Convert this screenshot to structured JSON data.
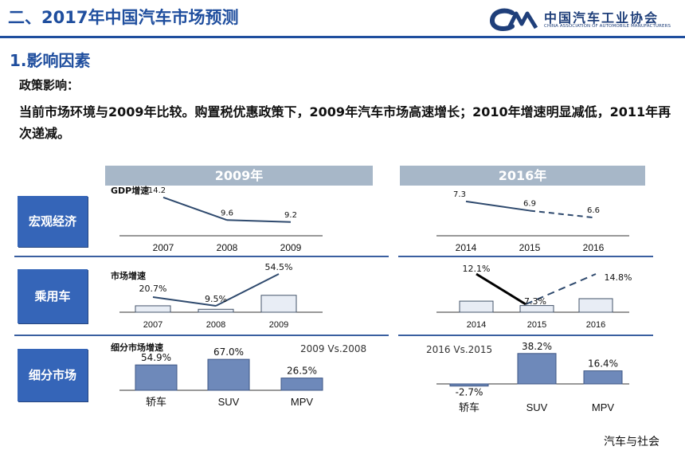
{
  "header": {
    "title": "二、2017年中国汽车市场预测",
    "logo_cn": "中国汽车工业协会",
    "logo_en": "CHINA ASSOCIATION OF AUTOMOBILE MANUFACTURERS"
  },
  "section_title": "1.影响因素",
  "policy_label": "政策影响：",
  "description": "当前市场环境与2009年比较。购置税优惠政策下，2009年汽车市场高速增长；2010年增速明显减低，2011年再次递减。",
  "columns": [
    "2009年",
    "2016年"
  ],
  "rows": [
    "宏观经济",
    "乘用车",
    "细分市场"
  ],
  "footer": "汽车与社会",
  "colors": {
    "brand": "#1f4e9e",
    "label_bg": "#3565b8",
    "header_bg": "#a7b7c8",
    "bar": "#6e89ba",
    "line": "#2f4a6e"
  },
  "chart_data": [
    {
      "type": "line",
      "panel": "gdp-2009",
      "title": "GDP增速",
      "categories": [
        "2007",
        "2008",
        "2009"
      ],
      "values": [
        14.2,
        9.6,
        9.2
      ],
      "labels": [
        "14.2",
        "9.6",
        "9.2"
      ]
    },
    {
      "type": "line",
      "panel": "gdp-2016",
      "title": "",
      "categories": [
        "2014",
        "2015",
        "2016"
      ],
      "values": [
        7.3,
        6.9,
        6.6
      ],
      "labels": [
        "7.3",
        "6.9",
        "6.6"
      ],
      "dashed_segments": [
        1
      ]
    },
    {
      "type": "bar",
      "panel": "car-2009",
      "title": "市场增速",
      "categories": [
        "2007",
        "2008",
        "2009"
      ],
      "values": [
        20.7,
        9.5,
        54.5
      ],
      "labels": [
        "20.7%",
        "9.5%",
        "54.5%"
      ]
    },
    {
      "type": "bar",
      "panel": "car-2016",
      "title": "",
      "categories": [
        "2014",
        "2015",
        "2016"
      ],
      "values": [
        12.1,
        7.3,
        14.8
      ],
      "labels": [
        "12.1%",
        "7.3%",
        "14.8%"
      ],
      "dashed_segments": [
        1
      ]
    },
    {
      "type": "bar",
      "panel": "seg-2009",
      "title": "细分市场增速",
      "annotation": "2009 Vs.2008",
      "categories": [
        "轿车",
        "SUV",
        "MPV"
      ],
      "values": [
        54.9,
        67.0,
        26.5
      ],
      "labels": [
        "54.9%",
        "67.0%",
        "26.5%"
      ]
    },
    {
      "type": "bar",
      "panel": "seg-2016",
      "title": "",
      "annotation": "2016 Vs.2015",
      "categories": [
        "轿车",
        "SUV",
        "MPV"
      ],
      "values": [
        -2.7,
        38.2,
        16.4
      ],
      "labels": [
        "-2.7%",
        "38.2%",
        "16.4%"
      ]
    }
  ]
}
